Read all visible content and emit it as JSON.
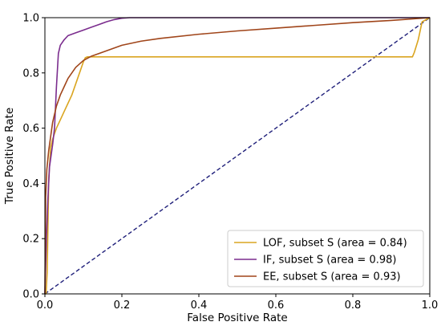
{
  "chart_data": {
    "type": "line",
    "title": "",
    "xlabel": "False Positive Rate",
    "ylabel": "True Positive Rate",
    "xlim": [
      0.0,
      1.0
    ],
    "ylim": [
      0.0,
      1.0
    ],
    "xticks": [
      "0.0",
      "0.2",
      "0.4",
      "0.6",
      "0.8",
      "1.0"
    ],
    "yticks": [
      "0.0",
      "0.2",
      "0.4",
      "0.6",
      "0.8",
      "1.0"
    ],
    "grid": false,
    "legend_position": "lower-right",
    "series": [
      {
        "name": "LOF, subset S (area = 0.84)",
        "color": "#DAA520",
        "x": [
          0.0,
          0.003,
          0.006,
          0.01,
          0.015,
          0.02,
          0.03,
          0.04,
          0.05,
          0.06,
          0.07,
          0.08,
          0.09,
          0.1,
          0.105,
          0.11,
          0.12,
          0.3,
          0.5,
          0.7,
          0.9,
          0.955,
          0.96,
          0.97,
          0.98,
          1.0
        ],
        "y": [
          0.0,
          0.0,
          0.08,
          0.42,
          0.53,
          0.56,
          0.6,
          0.63,
          0.66,
          0.69,
          0.72,
          0.76,
          0.8,
          0.84,
          0.855,
          0.858,
          0.858,
          0.858,
          0.858,
          0.858,
          0.858,
          0.858,
          0.875,
          0.92,
          0.985,
          1.0
        ]
      },
      {
        "name": "IF, subset S (area = 0.98)",
        "color": "#7B2D8E",
        "x": [
          0.0,
          0.004,
          0.008,
          0.012,
          0.016,
          0.02,
          0.025,
          0.03,
          0.035,
          0.04,
          0.05,
          0.06,
          0.08,
          0.1,
          0.12,
          0.14,
          0.16,
          0.18,
          0.2,
          0.22,
          0.5,
          0.8,
          1.0
        ],
        "y": [
          0.0,
          0.2,
          0.35,
          0.46,
          0.5,
          0.54,
          0.6,
          0.75,
          0.87,
          0.9,
          0.92,
          0.935,
          0.945,
          0.955,
          0.965,
          0.975,
          0.985,
          0.993,
          0.998,
          1.0,
          1.0,
          1.0,
          1.0
        ]
      },
      {
        "name": "EE, subset S (area = 0.93)",
        "color": "#A0451A",
        "x": [
          0.0,
          0.002,
          0.005,
          0.01,
          0.015,
          0.02,
          0.03,
          0.04,
          0.05,
          0.06,
          0.08,
          0.1,
          0.12,
          0.15,
          0.2,
          0.25,
          0.3,
          0.4,
          0.5,
          0.6,
          0.7,
          0.8,
          0.9,
          0.95,
          1.0
        ],
        "y": [
          0.0,
          0.35,
          0.45,
          0.52,
          0.57,
          0.62,
          0.68,
          0.72,
          0.75,
          0.78,
          0.82,
          0.845,
          0.86,
          0.875,
          0.9,
          0.915,
          0.925,
          0.94,
          0.952,
          0.962,
          0.972,
          0.982,
          0.99,
          0.995,
          1.0
        ]
      }
    ],
    "reference_line": {
      "color": "#1F1F7A",
      "style": "dashed",
      "x": [
        0.0,
        1.0
      ],
      "y": [
        0.0,
        1.0
      ]
    },
    "colors": {
      "axes": "#000000",
      "legend_border": "#CCCCCC",
      "background": "#FFFFFF"
    }
  }
}
